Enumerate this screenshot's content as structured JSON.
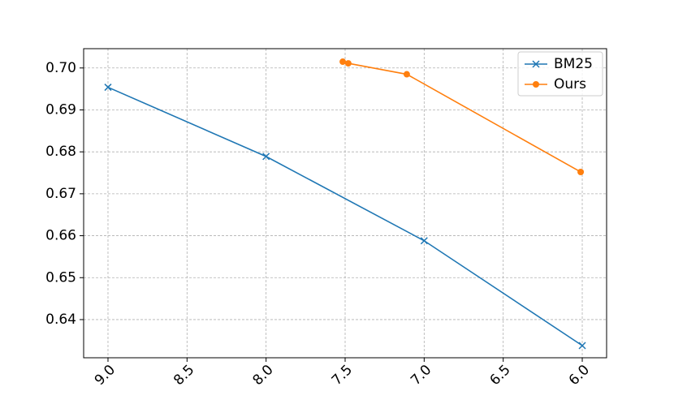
{
  "chart_data": {
    "type": "line",
    "series": [
      {
        "name": "BM25",
        "color": "#1f77b4",
        "marker": "x",
        "x": [
          9.0,
          8.0,
          7.0,
          6.0
        ],
        "values": [
          0.6954,
          0.6789,
          0.6588,
          0.6338
        ]
      },
      {
        "name": "Ours",
        "color": "#ff7f0e",
        "marker": "o",
        "x": [
          7.515,
          7.48,
          7.11,
          6.01
        ],
        "values": [
          0.7015,
          0.7011,
          0.6985,
          0.6752
        ]
      }
    ],
    "xlim": [
      9.154,
      5.846
    ],
    "ylim": [
      0.6309,
      0.7046
    ],
    "xticks": [
      {
        "value": 9,
        "label": "9.0"
      },
      8.5,
      {
        "value": 8,
        "label": "8.0"
      },
      7.5,
      {
        "value": 7,
        "label": "7.0"
      },
      6.5,
      {
        "value": 6,
        "label": "6.0"
      }
    ],
    "yticks": [
      0.64,
      0.65,
      0.66,
      0.67,
      0.68,
      0.69,
      {
        "value": 0.7,
        "label": "0.70"
      }
    ],
    "grid": true,
    "legend": "upper right"
  }
}
